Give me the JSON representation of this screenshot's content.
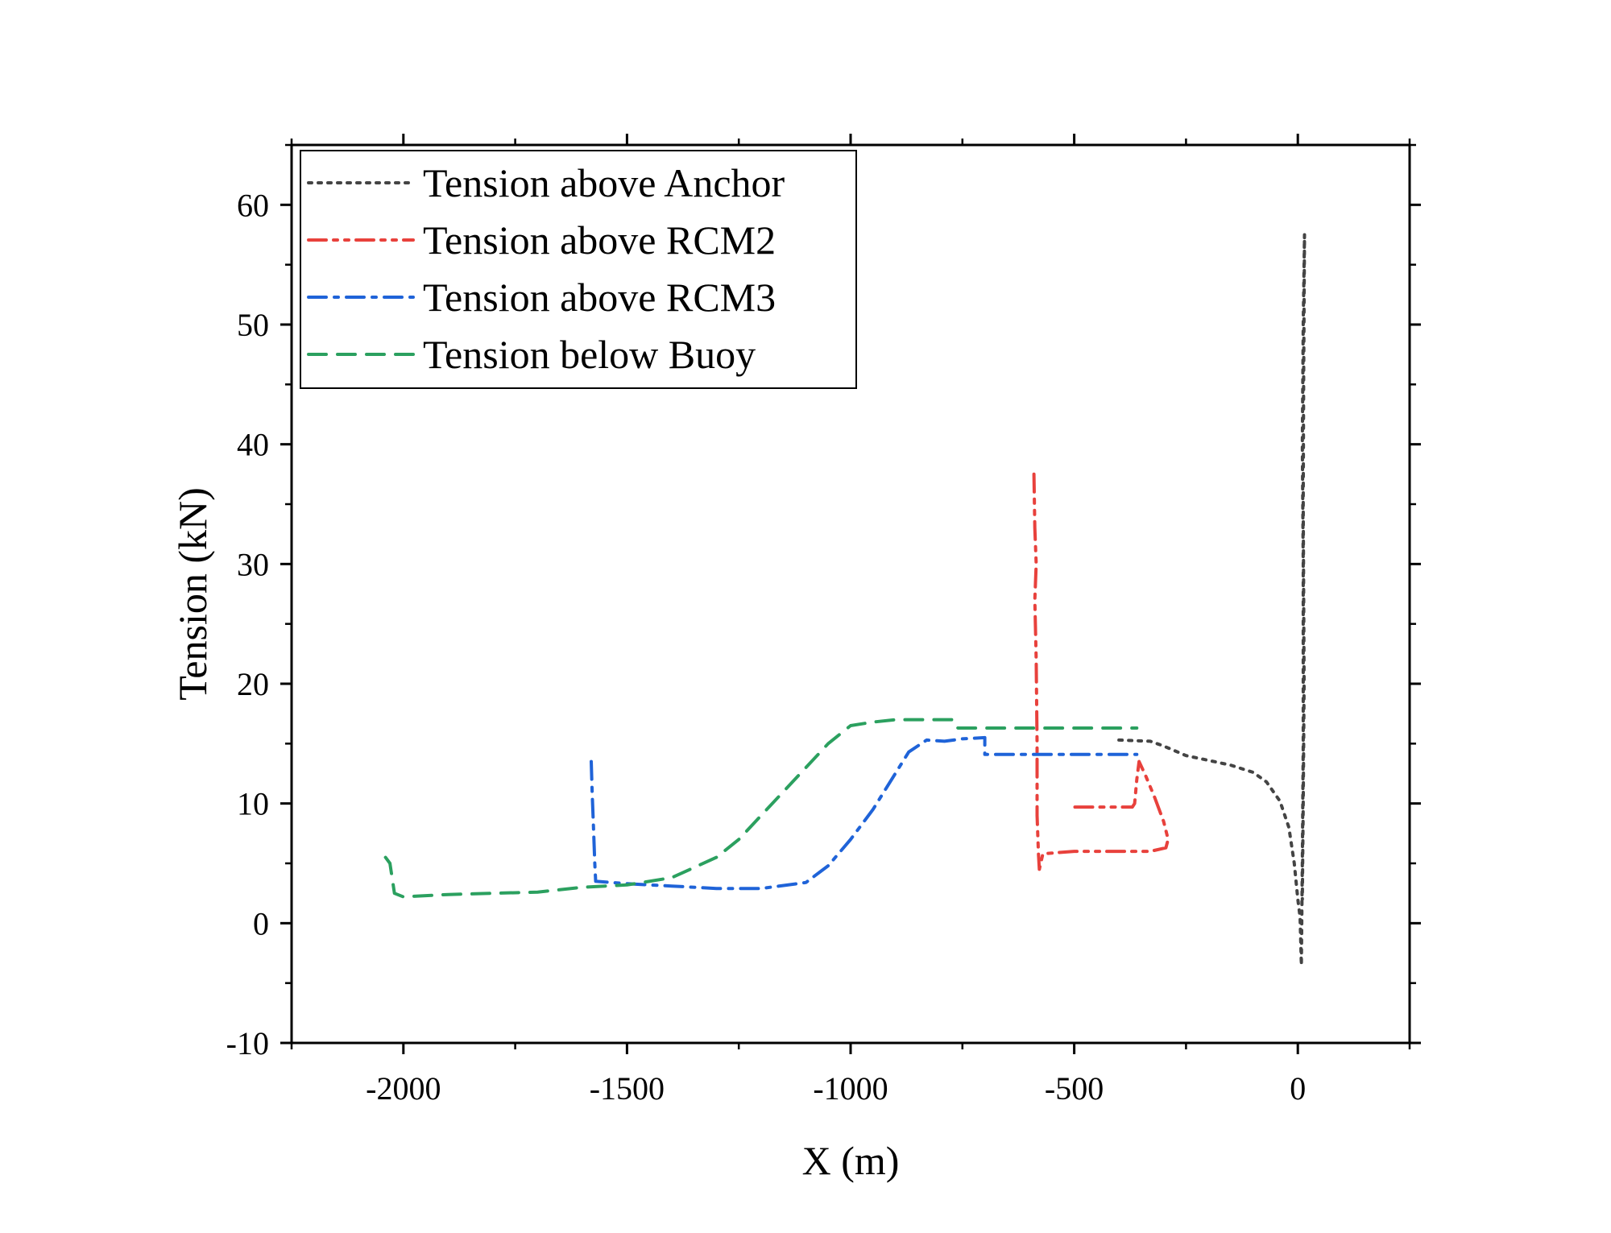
{
  "chart_data": {
    "type": "line",
    "title": "",
    "xlabel": "X (m)",
    "ylabel": "Tension (kN)",
    "xlim": [
      -2250,
      250
    ],
    "ylim": [
      -10,
      65
    ],
    "xticks": [
      -2000,
      -1500,
      -1000,
      -500,
      0
    ],
    "yticks": [
      -10,
      0,
      10,
      20,
      30,
      40,
      50,
      60
    ],
    "grid": false,
    "legend_position": "top-left",
    "series": [
      {
        "name": "Tension above Anchor",
        "color": "#444444",
        "dash": "dot",
        "points": [
          [
            -400,
            15.3
          ],
          [
            -330,
            15.2
          ],
          [
            -300,
            14.8
          ],
          [
            -250,
            14.0
          ],
          [
            -200,
            13.6
          ],
          [
            -150,
            13.2
          ],
          [
            -100,
            12.6
          ],
          [
            -70,
            11.8
          ],
          [
            -40,
            10.2
          ],
          [
            -20,
            8.0
          ],
          [
            -8,
            5.0
          ],
          [
            0,
            2.0
          ],
          [
            5,
            0.5
          ],
          [
            8,
            -3.5
          ],
          [
            10,
            5
          ],
          [
            12,
            15
          ],
          [
            12,
            30
          ],
          [
            10,
            40
          ],
          [
            12,
            50
          ],
          [
            15,
            57.5
          ],
          [
            13,
            45
          ],
          [
            12,
            35
          ],
          [
            14,
            20
          ],
          [
            12,
            10
          ],
          [
            10,
            2
          ]
        ]
      },
      {
        "name": "Tension above RCM2",
        "color": "#e8413c",
        "dash": "dashdotdot",
        "points": [
          [
            -590,
            37.5
          ],
          [
            -588,
            33
          ],
          [
            -585,
            30
          ],
          [
            -588,
            27
          ],
          [
            -585,
            22
          ],
          [
            -583,
            15
          ],
          [
            -583,
            9
          ],
          [
            -580,
            5.8
          ],
          [
            -578,
            4.5
          ],
          [
            -570,
            5.8
          ],
          [
            -500,
            6.0
          ],
          [
            -400,
            6.0
          ],
          [
            -330,
            6.0
          ],
          [
            -295,
            6.3
          ],
          [
            -290,
            7.0
          ],
          [
            -300,
            8.5
          ],
          [
            -320,
            10.5
          ],
          [
            -340,
            12.3
          ],
          [
            -355,
            13.5
          ],
          [
            -360,
            12.0
          ],
          [
            -365,
            10.0
          ],
          [
            -370,
            9.7
          ],
          [
            -440,
            9.7
          ],
          [
            -500,
            9.7
          ]
        ]
      },
      {
        "name": "Tension above RCM3",
        "color": "#1f63d8",
        "dash": "dashdot",
        "points": [
          [
            -1580,
            13.5
          ],
          [
            -1578,
            11
          ],
          [
            -1575,
            8
          ],
          [
            -1572,
            5
          ],
          [
            -1570,
            3.5
          ],
          [
            -1500,
            3.3
          ],
          [
            -1400,
            3.1
          ],
          [
            -1300,
            2.9
          ],
          [
            -1200,
            2.9
          ],
          [
            -1100,
            3.4
          ],
          [
            -1050,
            4.8
          ],
          [
            -1000,
            7.0
          ],
          [
            -950,
            9.5
          ],
          [
            -900,
            12.5
          ],
          [
            -870,
            14.3
          ],
          [
            -830,
            15.3
          ],
          [
            -790,
            15.2
          ],
          [
            -750,
            15.4
          ],
          [
            -700,
            15.5
          ],
          [
            -700,
            14.1
          ],
          [
            -600,
            14.1
          ],
          [
            -500,
            14.1
          ],
          [
            -400,
            14.1
          ],
          [
            -360,
            14.1
          ]
        ]
      },
      {
        "name": "Tension below Buoy",
        "color": "#2ba05f",
        "dash": "dash",
        "points": [
          [
            -2040,
            5.5
          ],
          [
            -2030,
            5.0
          ],
          [
            -2020,
            2.5
          ],
          [
            -2000,
            2.2
          ],
          [
            -1900,
            2.4
          ],
          [
            -1800,
            2.5
          ],
          [
            -1700,
            2.6
          ],
          [
            -1600,
            3.0
          ],
          [
            -1500,
            3.2
          ],
          [
            -1400,
            3.8
          ],
          [
            -1300,
            5.5
          ],
          [
            -1250,
            7.0
          ],
          [
            -1200,
            9.0
          ],
          [
            -1150,
            11.0
          ],
          [
            -1100,
            13.0
          ],
          [
            -1050,
            15.0
          ],
          [
            -1000,
            16.5
          ],
          [
            -950,
            16.8
          ],
          [
            -900,
            17.0
          ],
          [
            -850,
            17.0
          ],
          [
            -800,
            17.0
          ],
          [
            -770,
            17.0
          ],
          [
            -760,
            16.3
          ],
          [
            -700,
            16.3
          ],
          [
            -600,
            16.3
          ],
          [
            -500,
            16.3
          ],
          [
            -400,
            16.3
          ],
          [
            -360,
            16.3
          ]
        ]
      }
    ]
  }
}
